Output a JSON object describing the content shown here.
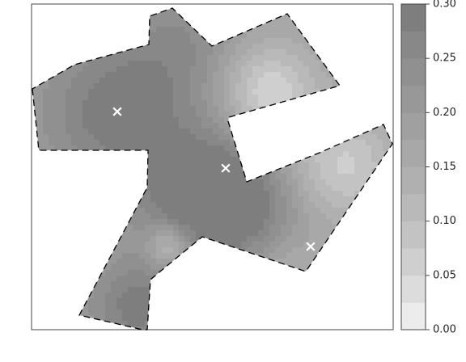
{
  "chart_data": {
    "type": "heatmap",
    "title": "",
    "xlabel": "",
    "ylabel": "",
    "colorbar": {
      "min": 0.0,
      "max": 0.3,
      "levels": [
        0.0,
        0.025,
        0.05,
        0.075,
        0.1,
        0.125,
        0.15,
        0.175,
        0.2,
        0.225,
        0.25,
        0.275,
        0.3
      ],
      "ticks": [
        "0.00",
        "0.05",
        "0.10",
        "0.15",
        "0.20",
        "0.25",
        "0.30"
      ],
      "colors": [
        "#ececec",
        "#dcdcdc",
        "#cfcfcf",
        "#c3c3c3",
        "#b9b9b9",
        "#b0b0b0",
        "#a8a8a8",
        "#a0a0a0",
        "#989898",
        "#909090",
        "#888888",
        "#7e7e7e"
      ]
    },
    "markers": {
      "symbol": "×",
      "count": 3,
      "color": "#ffffff"
    },
    "boundary": {
      "style": "dashed",
      "color": "#000000"
    },
    "background": "#ffffff"
  }
}
